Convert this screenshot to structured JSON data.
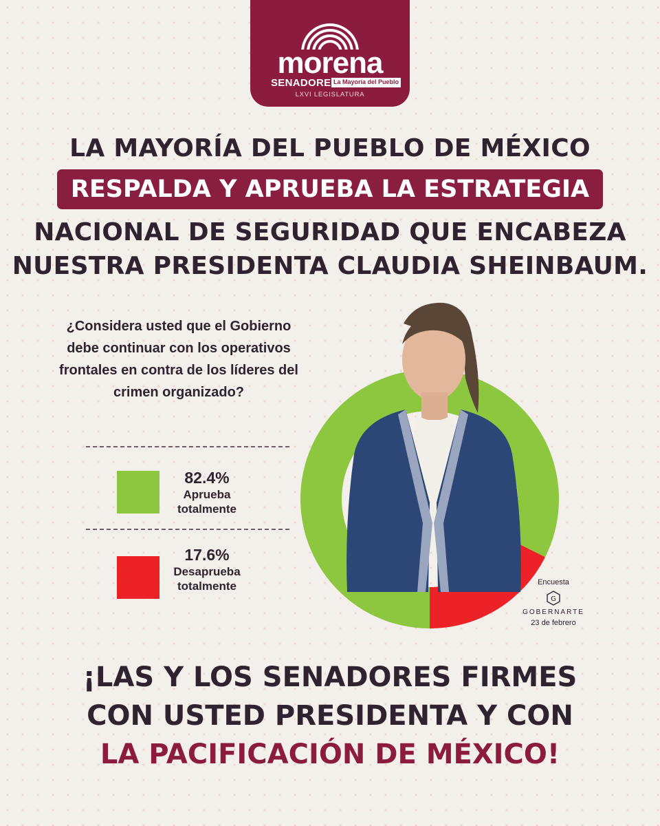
{
  "logo": {
    "wordmark": "morena",
    "senadores": "SENADORES",
    "tagline": "La Mayoría del Pueblo",
    "legislatura": "LXVI LEGISLATURA",
    "color": "#8c1c3e"
  },
  "headline": {
    "line1": "LA MAYORÍA DEL PUEBLO DE MÉXICO",
    "banner": "RESPALDA Y APRUEBA LA ESTRATEGIA",
    "line3": "NACIONAL DE SEGURIDAD QUE ENCABEZA",
    "line4": "NUESTRA PRESIDENTA CLAUDIA SHEINBAUM."
  },
  "chart_data": {
    "type": "pie",
    "style": "donut",
    "title": "",
    "question": "¿Considera usted que el Gobierno debe continuar con los operativos frontales en contra de los líderes del crimen organizado?",
    "categories": [
      "Aprueba totalmente",
      "Desaprueba totalmente"
    ],
    "values": [
      82.4,
      17.6
    ],
    "value_labels": [
      "82.4%",
      "17.6%"
    ],
    "colors": [
      "#8dc63f",
      "#ec2227"
    ],
    "legend_position": "left"
  },
  "legend": [
    {
      "value": "82.4%",
      "label_line1": "Aprueba",
      "label_line2": "totalmente",
      "color": "#8dc63f"
    },
    {
      "value": "17.6%",
      "label_line1": "Desaprueba",
      "label_line2": "totalmente",
      "color": "#ec2227"
    }
  ],
  "source": {
    "label": "Encuesta",
    "pollster": "GOBERNARTE",
    "date": "23 de febrero"
  },
  "closing": {
    "line1": "¡LAS Y LOS SENADORES FIRMES",
    "line2": "CON USTED PRESIDENTA Y CON",
    "line3": "LA PACIFICACIÓN DE MÉXICO!"
  }
}
